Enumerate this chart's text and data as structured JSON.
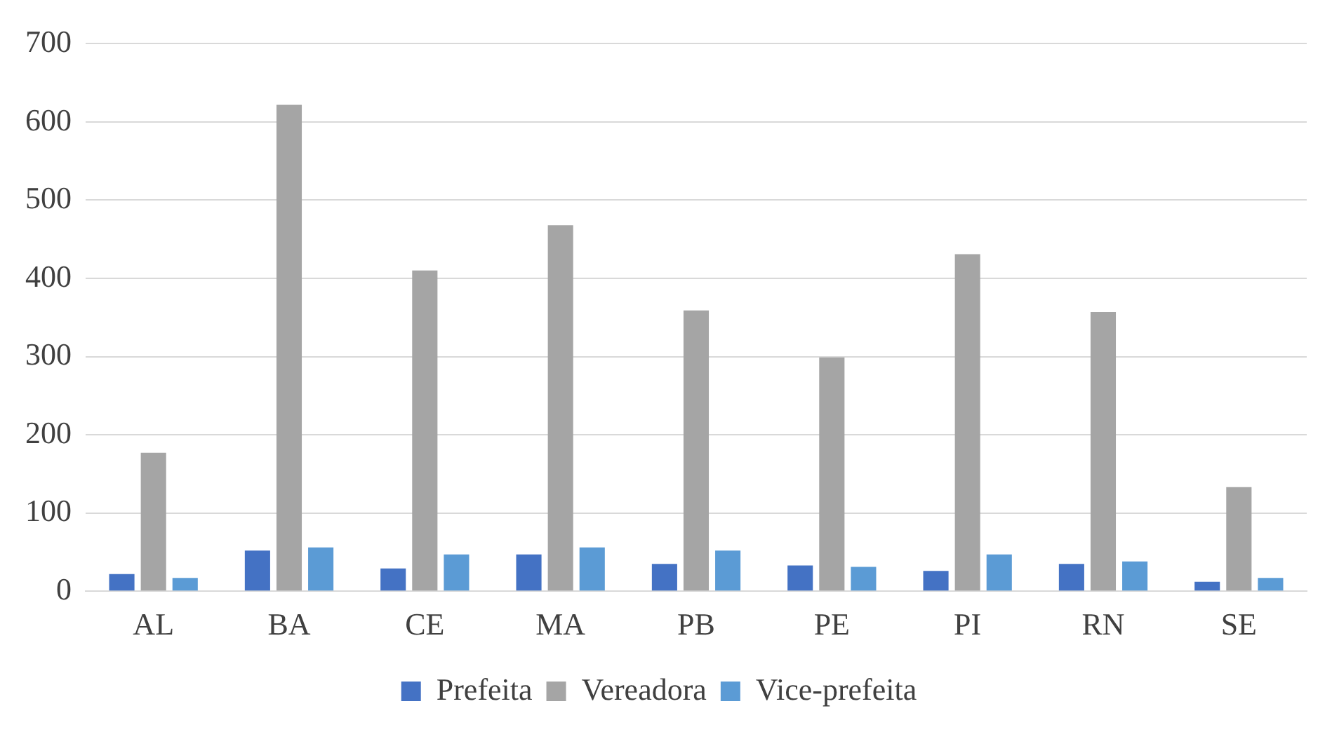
{
  "chart_data": {
    "type": "bar",
    "categories": [
      "AL",
      "BA",
      "CE",
      "MA",
      "PB",
      "PE",
      "PI",
      "RN",
      "SE"
    ],
    "series": [
      {
        "name": "Prefeita",
        "color": "#4472c4",
        "values": [
          22,
          52,
          29,
          47,
          35,
          33,
          26,
          35,
          12
        ]
      },
      {
        "name": "Vereadora",
        "color": "#a5a5a5",
        "values": [
          177,
          622,
          410,
          468,
          359,
          299,
          431,
          357,
          133
        ]
      },
      {
        "name": "Vice-prefeita",
        "color": "#5b9bd5",
        "values": [
          17,
          56,
          47,
          56,
          52,
          31,
          47,
          38,
          17
        ]
      }
    ],
    "ylim": [
      0,
      700
    ],
    "yticks": [
      0,
      100,
      200,
      300,
      400,
      500,
      600,
      700
    ],
    "grid": "y",
    "legend": "bottom"
  }
}
